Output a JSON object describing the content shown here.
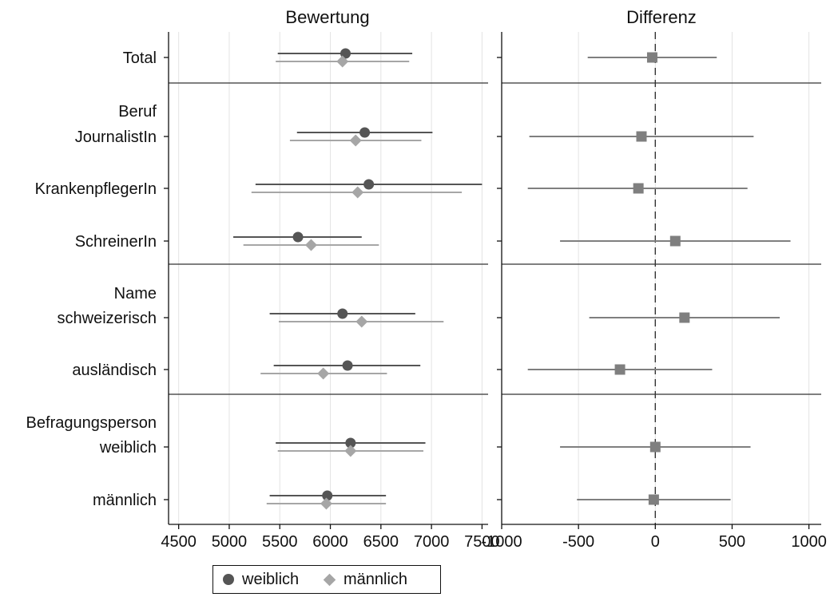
{
  "colors": {
    "weiblich": "#555555",
    "maennlich": "#a6a6a6",
    "differenz": "#7f7f7f",
    "grid": "#e3e3e3",
    "axis": "#111111"
  },
  "chart_data": [
    {
      "type": "scatter",
      "title": "Bewertung",
      "xlim": [
        4400,
        7560
      ],
      "xticks": [
        4500,
        5000,
        5500,
        6000,
        6500,
        7000,
        7500
      ],
      "grid": true,
      "groups": [
        {
          "header": "",
          "rows": [
            {
              "label": "Total",
              "weiblich": {
                "value": 6150,
                "ci": [
                  5480,
                  6810
                ]
              },
              "maennlich": {
                "value": 6120,
                "ci": [
                  5460,
                  6780
                ]
              }
            }
          ]
        },
        {
          "header": "Beruf",
          "rows": [
            {
              "label": "JournalistIn",
              "weiblich": {
                "value": 6340,
                "ci": [
                  5670,
                  7010
                ]
              },
              "maennlich": {
                "value": 6250,
                "ci": [
                  5600,
                  6900
                ]
              }
            },
            {
              "label": "KrankenpflegerIn",
              "weiblich": {
                "value": 6380,
                "ci": [
                  5260,
                  7500
                ]
              },
              "maennlich": {
                "value": 6270,
                "ci": [
                  5220,
                  7300
                ]
              }
            },
            {
              "label": "SchreinerIn",
              "weiblich": {
                "value": 5680,
                "ci": [
                  5040,
                  6310
                ]
              },
              "maennlich": {
                "value": 5810,
                "ci": [
                  5140,
                  6480
                ]
              }
            }
          ]
        },
        {
          "header": "Name",
          "rows": [
            {
              "label": "schweizerisch",
              "weiblich": {
                "value": 6120,
                "ci": [
                  5400,
                  6840
                ]
              },
              "maennlich": {
                "value": 6310,
                "ci": [
                  5490,
                  7120
                ]
              }
            },
            {
              "label": "ausländisch",
              "weiblich": {
                "value": 6170,
                "ci": [
                  5440,
                  6890
                ]
              },
              "maennlich": {
                "value": 5930,
                "ci": [
                  5310,
                  6560
                ]
              }
            }
          ]
        },
        {
          "header": "Befragungsperson",
          "rows": [
            {
              "label": "weiblich",
              "weiblich": {
                "value": 6200,
                "ci": [
                  5460,
                  6940
                ]
              },
              "maennlich": {
                "value": 6200,
                "ci": [
                  5480,
                  6920
                ]
              }
            },
            {
              "label": "männlich",
              "weiblich": {
                "value": 5970,
                "ci": [
                  5400,
                  6550
                ]
              },
              "maennlich": {
                "value": 5960,
                "ci": [
                  5370,
                  6550
                ]
              }
            }
          ]
        }
      ]
    },
    {
      "type": "scatter",
      "title": "Differenz",
      "xlim": [
        -1000,
        1080
      ],
      "xticks": [
        -1000,
        -500,
        0,
        500,
        1000
      ],
      "reference_line": 0,
      "grid": true,
      "rows": [
        {
          "label": "Total",
          "value": -20,
          "ci": [
            -440,
            400
          ]
        },
        {
          "label": "JournalistIn",
          "value": -90,
          "ci": [
            -820,
            640
          ]
        },
        {
          "label": "KrankenpflegerIn",
          "value": -110,
          "ci": [
            -830,
            600
          ]
        },
        {
          "label": "SchreinerIn",
          "value": 130,
          "ci": [
            -620,
            880
          ]
        },
        {
          "label": "schweizerisch",
          "value": 190,
          "ci": [
            -430,
            810
          ]
        },
        {
          "label": "ausländisch",
          "value": -230,
          "ci": [
            -830,
            370
          ]
        },
        {
          "label": "weiblich",
          "value": 0,
          "ci": [
            -620,
            620
          ]
        },
        {
          "label": "männlich",
          "value": -10,
          "ci": [
            -510,
            490
          ]
        }
      ]
    }
  ],
  "legend": {
    "position": "bottom",
    "items": [
      {
        "label": "weiblich",
        "marker": "circle"
      },
      {
        "label": "männlich",
        "marker": "diamond"
      }
    ]
  }
}
